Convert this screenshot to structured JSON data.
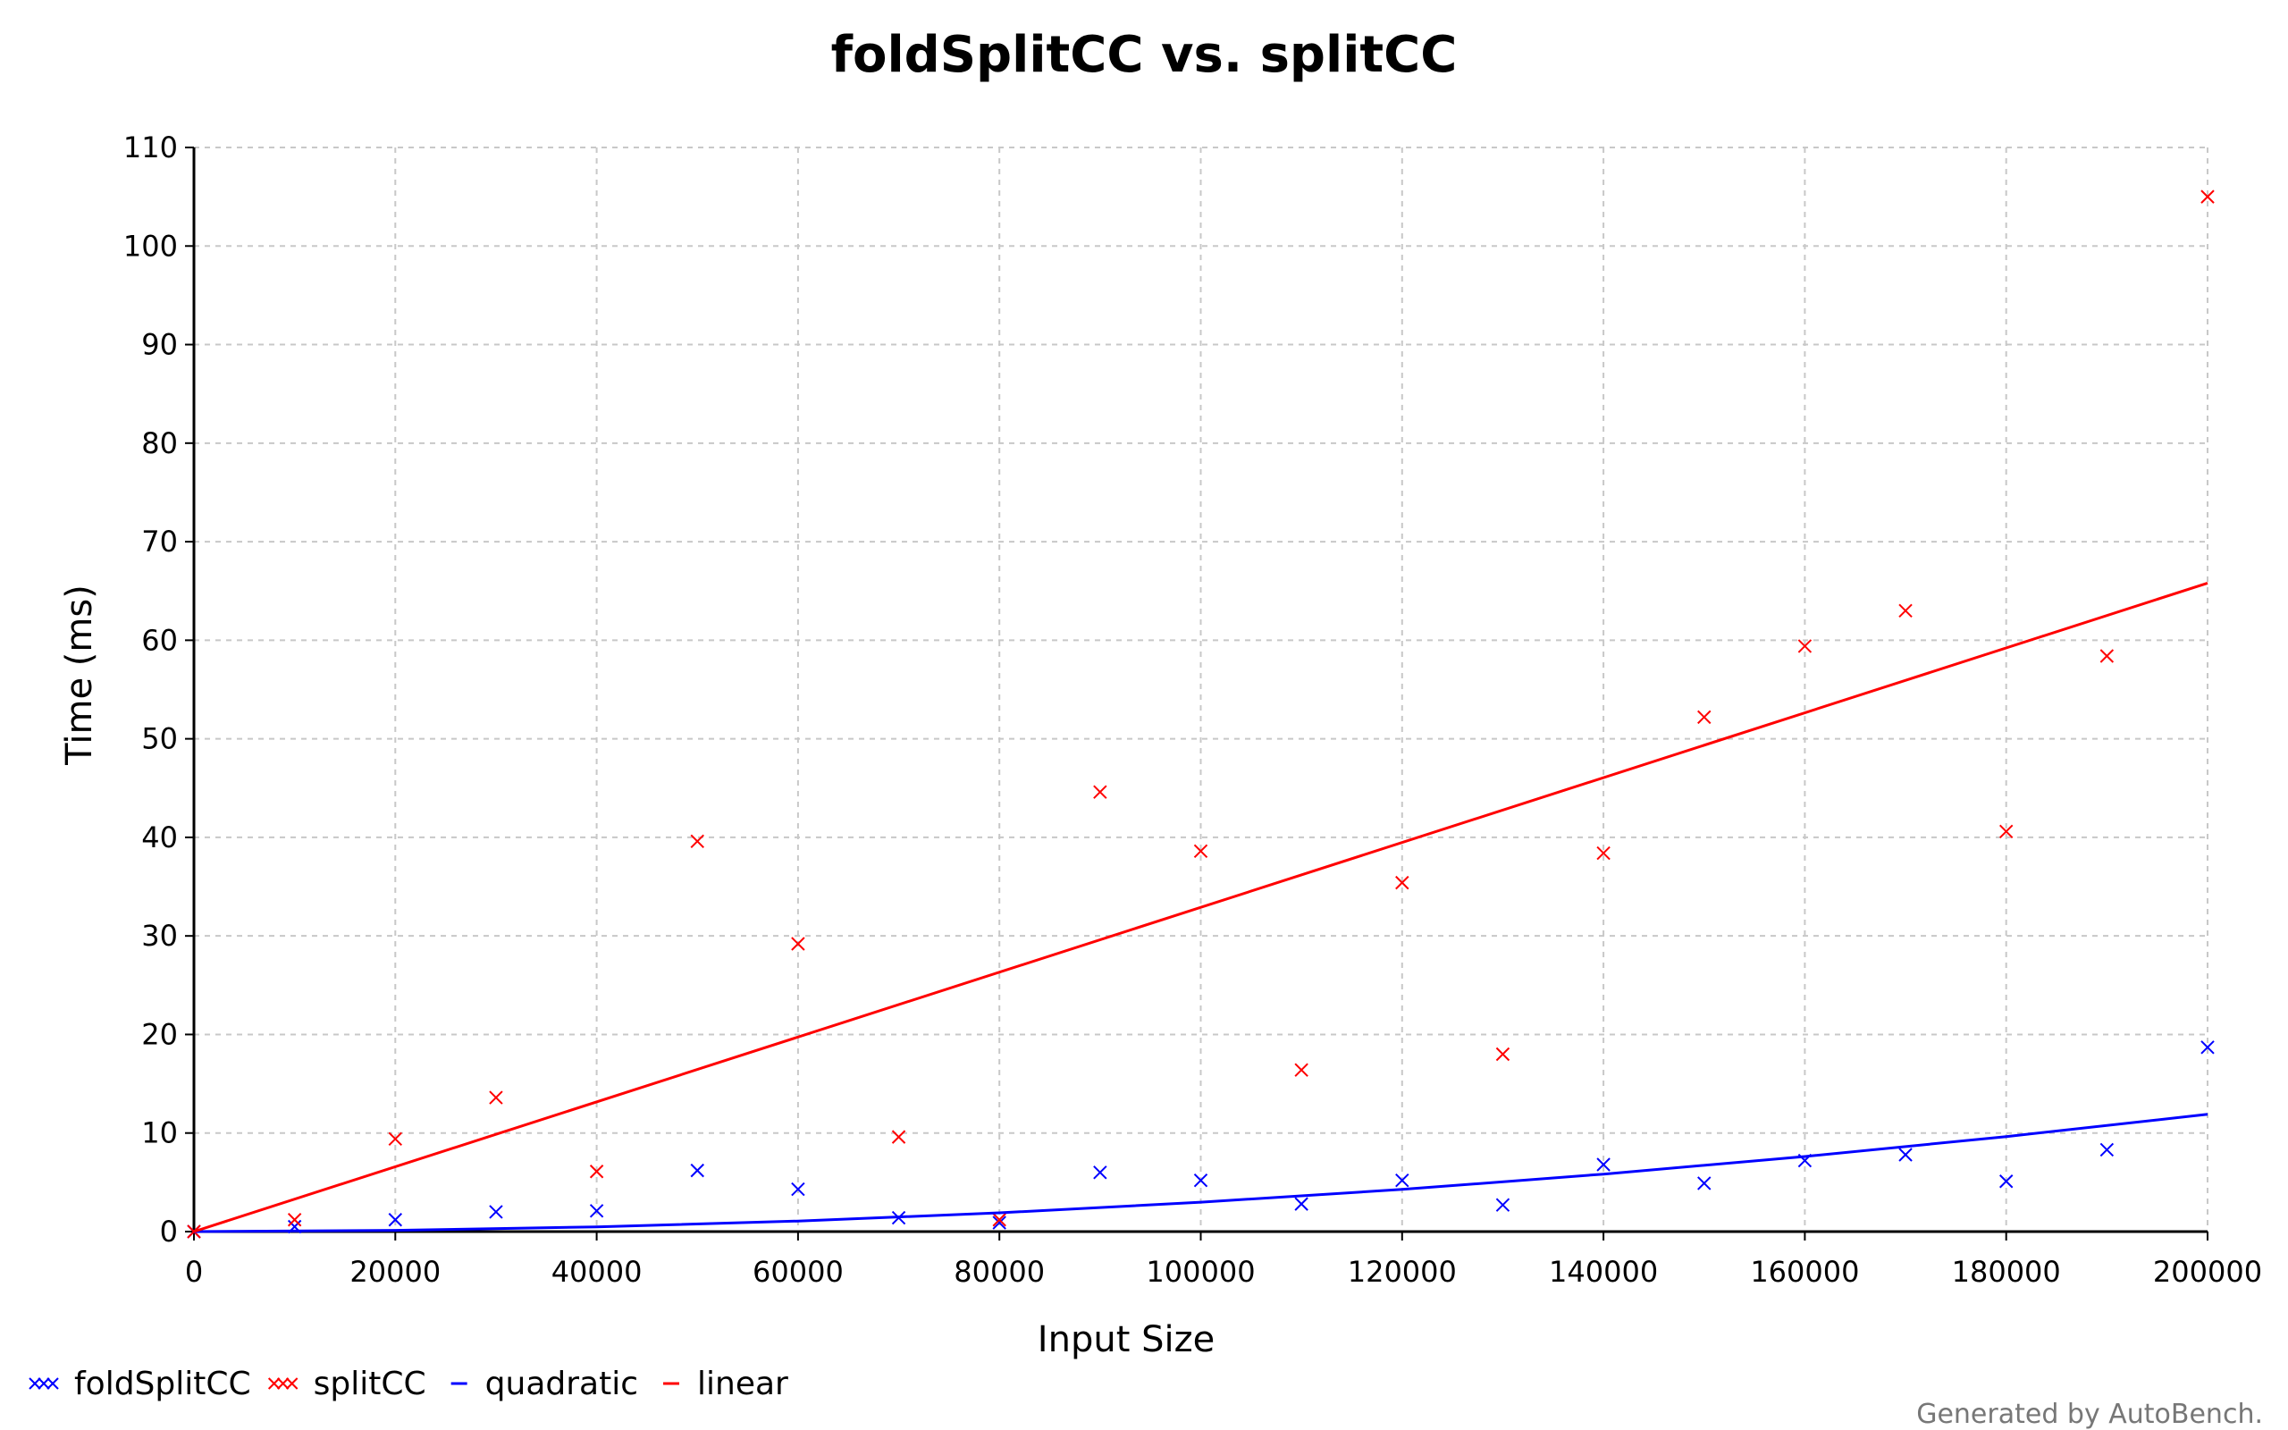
{
  "chart_data": {
    "type": "scatter",
    "title": "foldSplitCC vs. splitCC",
    "xlabel": "Input Size",
    "ylabel": "Time (ms)",
    "xlim": [
      0,
      200000
    ],
    "ylim": [
      0,
      110
    ],
    "x_ticks": [
      0,
      20000,
      40000,
      60000,
      80000,
      100000,
      120000,
      140000,
      160000,
      180000,
      200000
    ],
    "y_ticks": [
      0,
      10,
      20,
      30,
      40,
      50,
      60,
      70,
      80,
      90,
      100,
      110
    ],
    "x_tick_labels": [
      "0",
      "20000",
      "40000",
      "60000",
      "80000",
      "100000",
      "120000",
      "140000",
      "160000",
      "180000",
      "200000"
    ],
    "y_tick_labels": [
      "0",
      "10",
      "20",
      "30",
      "40",
      "50",
      "60",
      "70",
      "80",
      "90",
      "100",
      "110"
    ],
    "grid": true,
    "legend_position": "bottom-left",
    "series": [
      {
        "name": "foldSplitCC",
        "kind": "scatter",
        "color": "#0000ff",
        "x": [
          0,
          10000,
          20000,
          30000,
          40000,
          50000,
          60000,
          70000,
          80000,
          90000,
          100000,
          110000,
          120000,
          130000,
          140000,
          150000,
          160000,
          170000,
          180000,
          190000,
          200000
        ],
        "y": [
          0,
          0.5,
          1.2,
          2.0,
          2.1,
          6.2,
          4.3,
          1.4,
          0.9,
          6.0,
          5.2,
          2.8,
          5.2,
          2.7,
          6.8,
          4.9,
          7.2,
          7.8,
          5.1,
          8.3,
          18.7
        ]
      },
      {
        "name": "splitCC",
        "kind": "scatter",
        "color": "#ff0000",
        "x": [
          0,
          10000,
          20000,
          30000,
          40000,
          50000,
          60000,
          70000,
          80000,
          90000,
          100000,
          110000,
          120000,
          130000,
          140000,
          150000,
          160000,
          170000,
          180000,
          190000,
          200000
        ],
        "y": [
          0,
          1.2,
          9.4,
          13.6,
          6.1,
          39.6,
          29.2,
          9.6,
          1.2,
          44.6,
          38.6,
          16.4,
          35.4,
          18.0,
          38.4,
          52.2,
          59.4,
          63.0,
          40.6,
          58.4,
          105.0
        ]
      },
      {
        "name": "quadratic",
        "kind": "line",
        "color": "#0000ff",
        "x": [
          0,
          20000,
          40000,
          60000,
          80000,
          100000,
          120000,
          140000,
          160000,
          180000,
          200000
        ],
        "y": [
          0,
          0.12,
          0.48,
          1.07,
          1.9,
          2.98,
          4.28,
          5.83,
          7.62,
          9.64,
          11.9
        ]
      },
      {
        "name": "linear",
        "kind": "line",
        "color": "#ff0000",
        "x": [
          0,
          200000
        ],
        "y": [
          0,
          65.8
        ]
      }
    ]
  },
  "footer": {
    "text": "Generated by AutoBench."
  }
}
